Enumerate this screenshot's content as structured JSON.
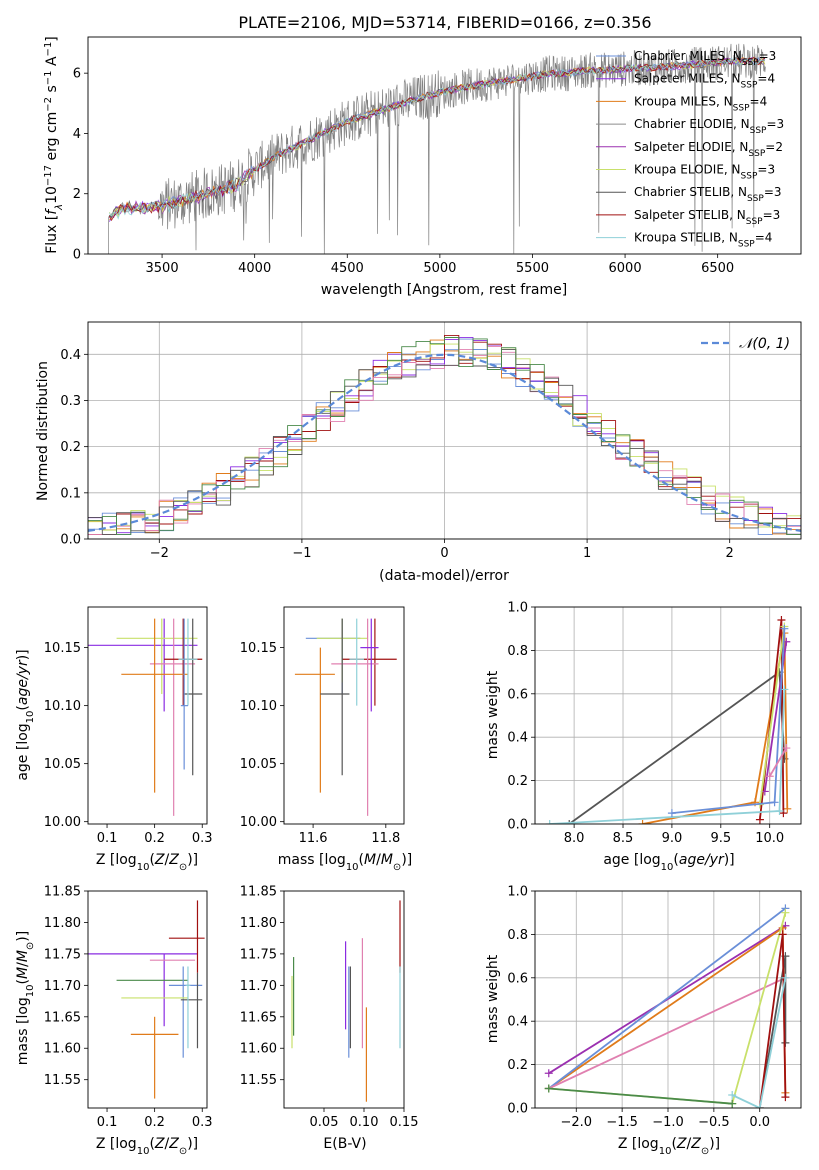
{
  "colors": {
    "Chabrier MILES": "#6a8fd8",
    "Salpeter MILES": "#8a2be2",
    "Kroupa MILES": "#e07b1a",
    "Chabrier ELODIE": "#8c8c8c",
    "Salpeter ELODIE": "#9b30b0",
    "Kroupa ELODIE": "#c8e06a",
    "Chabrier STELIB": "#555555",
    "Salpeter STELIB": "#a01010",
    "Kroupa STELIB": "#8fd0d8",
    "pink": "#e080b0",
    "green": "#4a8a4a",
    "normal": "#5b8ad8"
  },
  "chart_data": [
    {
      "id": "spectrum",
      "type": "line",
      "title": "PLATE=2106, MJD=53714, FIBERID=0166, z=0.356",
      "xlabel": "wavelength [Angstrom, rest frame]",
      "ylabel": "Flux [f_λ10^-17 erg cm^-2 s^-1 A^-1]",
      "xlim": [
        3100,
        6950
      ],
      "ylim": [
        0,
        7.2
      ],
      "xticks": [
        "3500",
        "4000",
        "4500",
        "5000",
        "5500",
        "6000",
        "6500"
      ],
      "yticks": [
        "0",
        "2",
        "4",
        "6"
      ],
      "continuum": {
        "x": [
          3210,
          3250,
          3300,
          3400,
          3500,
          3600,
          3700,
          3800,
          3900,
          4000,
          4100,
          4200,
          4300,
          4400,
          4500,
          4600,
          4700,
          4800,
          4900,
          5000,
          5100,
          5200,
          5300,
          5400,
          5500,
          5600,
          5700,
          5800,
          5900,
          6000,
          6200,
          6400,
          6600,
          6750
        ],
        "y": [
          1.2,
          1.4,
          1.5,
          1.55,
          1.6,
          1.75,
          1.95,
          2.1,
          2.3,
          2.8,
          3.2,
          3.5,
          3.8,
          4.1,
          4.4,
          4.6,
          4.8,
          5.0,
          5.2,
          5.35,
          5.5,
          5.6,
          5.7,
          5.8,
          5.9,
          6.0,
          6.0,
          6.1,
          6.1,
          6.15,
          6.2,
          6.3,
          6.4,
          6.4
        ]
      },
      "legend": [
        {
          "label": "Chabrier MILES, N_SSP=3",
          "text": "Chabrier MILES, N",
          "sub": "SSP",
          "tail": "=3"
        },
        {
          "label": "Salpeter MILES, N_SSP=4",
          "text": "Salpeter MILES, N",
          "sub": "SSP",
          "tail": "=4"
        },
        {
          "label": "Kroupa MILES, N_SSP=4",
          "text": "Kroupa MILES, N",
          "sub": "SSP",
          "tail": "=4"
        },
        {
          "label": "Chabrier ELODIE, N_SSP=3",
          "text": "Chabrier ELODIE, N",
          "sub": "SSP",
          "tail": "=3"
        },
        {
          "label": "Salpeter ELODIE, N_SSP=2",
          "text": "Salpeter ELODIE, N",
          "sub": "SSP",
          "tail": "=2"
        },
        {
          "label": "Kroupa ELODIE, N_SSP=3",
          "text": "Kroupa ELODIE, N",
          "sub": "SSP",
          "tail": "=3"
        },
        {
          "label": "Chabrier STELIB, N_SSP=3",
          "text": "Chabrier STELIB, N",
          "sub": "SSP",
          "tail": "=3"
        },
        {
          "label": "Salpeter STELIB, N_SSP=3",
          "text": "Salpeter STELIB, N",
          "sub": "SSP",
          "tail": "=3"
        },
        {
          "label": "Kroupa STELIB, N_SSP=4",
          "text": "Kroupa STELIB, N",
          "sub": "SSP",
          "tail": "=4"
        }
      ],
      "legend_loc": "upper right"
    },
    {
      "id": "residuals",
      "type": "line",
      "xlabel": "(data-model)/error",
      "ylabel": "Normed distribution",
      "xlim": [
        -2.5,
        2.5
      ],
      "ylim": [
        0,
        0.47
      ],
      "xticks": [
        "−2",
        "−1",
        "0",
        "1",
        "2"
      ],
      "yticks": [
        "0.0",
        "0.1",
        "0.2",
        "0.3",
        "0.4"
      ],
      "grid": true,
      "legend": "𝒩(0, 1)",
      "legend_loc": "upper right"
    },
    {
      "id": "age_vs_Z",
      "type": "scatter",
      "xlabel": "Z [log10(Z/Z⊙)]",
      "ylabel": "age [log10(age/yr)]",
      "xlim": [
        0.06,
        0.31
      ],
      "ylim": [
        9.998,
        10.185
      ],
      "xticks": [
        "0.1",
        "0.2",
        "0.3"
      ],
      "yticks": [
        "10.00",
        "10.05",
        "10.10",
        "10.15"
      ],
      "points": [
        {
          "series": "Salpeter MILES",
          "x": 0.22,
          "y": 10.152,
          "xlo": 0.06,
          "xhi": 0.29,
          "ylo": 10.095,
          "yhi": 10.175
        },
        {
          "series": "Kroupa ELODIE",
          "x": 0.215,
          "y": 10.158,
          "xlo": 0.12,
          "xhi": 0.29,
          "ylo": 10.11,
          "yhi": 10.175
        },
        {
          "series": "pink",
          "x": 0.24,
          "y": 10.136,
          "xlo": 0.19,
          "xhi": 0.285,
          "ylo": 10.005,
          "yhi": 10.175
        },
        {
          "series": "Salpeter STELIB",
          "x": 0.26,
          "y": 10.14,
          "xlo": 0.22,
          "xhi": 0.3,
          "ylo": 10.1,
          "yhi": 10.175
        },
        {
          "series": "Kroupa MILES",
          "x": 0.2,
          "y": 10.127,
          "xlo": 0.13,
          "xhi": 0.27,
          "ylo": 10.025,
          "yhi": 10.175
        },
        {
          "series": "Chabrier STELIB",
          "x": 0.28,
          "y": 10.11,
          "xlo": 0.26,
          "xhi": 0.3,
          "ylo": 10.04,
          "yhi": 10.175
        },
        {
          "series": "Kroupa STELIB",
          "x": 0.27,
          "y": 10.14,
          "xlo": 0.25,
          "xhi": 0.29,
          "ylo": 10.1,
          "yhi": 10.175
        },
        {
          "series": "Chabrier MILES",
          "x": 0.262,
          "y": 10.1,
          "xlo": 0.255,
          "xhi": 0.27,
          "ylo": 10.045,
          "yhi": 10.175
        }
      ]
    },
    {
      "id": "age_vs_mass",
      "type": "scatter",
      "xlabel": "mass [log10(M/M⊙)]",
      "ylabel": "",
      "xlim": [
        11.52,
        11.85
      ],
      "ylim": [
        9.998,
        10.185
      ],
      "xticks": [
        "11.6",
        "11.8"
      ],
      "yticks": [
        "10.00",
        "10.05",
        "10.10",
        "10.15"
      ],
      "points": [
        {
          "series": "Chabrier MILES",
          "x": 11.68,
          "y": 10.158,
          "xlo": 11.58,
          "xhi": 11.73,
          "ylo": 10.11,
          "yhi": 10.175
        },
        {
          "series": "Kroupa ELODIE",
          "x": 11.68,
          "y": 10.158,
          "xlo": 11.61,
          "xhi": 11.75,
          "ylo": 10.12,
          "yhi": 10.175
        },
        {
          "series": "Kroupa MILES",
          "x": 11.62,
          "y": 10.127,
          "xlo": 11.55,
          "xhi": 11.66,
          "ylo": 10.025,
          "yhi": 10.15
        },
        {
          "series": "Salpeter STELIB",
          "x": 11.77,
          "y": 10.14,
          "xlo": 11.68,
          "xhi": 11.83,
          "ylo": 10.1,
          "yhi": 10.175
        },
        {
          "series": "pink",
          "x": 11.75,
          "y": 10.136,
          "xlo": 11.65,
          "xhi": 11.78,
          "ylo": 10.005,
          "yhi": 10.175
        },
        {
          "series": "Chabrier STELIB",
          "x": 11.68,
          "y": 10.11,
          "xlo": 11.62,
          "xhi": 11.7,
          "ylo": 10.04,
          "yhi": 10.175
        },
        {
          "series": "Salpeter MILES",
          "x": 11.76,
          "y": 10.15,
          "xlo": 11.73,
          "xhi": 11.78,
          "ylo": 10.095,
          "yhi": 10.175
        },
        {
          "series": "Kroupa STELIB",
          "x": 11.72,
          "y": 10.14,
          "xlo": 11.7,
          "xhi": 11.74,
          "ylo": 10.1,
          "yhi": 10.175
        }
      ]
    },
    {
      "id": "mass_weight_vs_age",
      "type": "line",
      "xlabel": "age [log10(age/yr)]",
      "ylabel": "mass weight",
      "xlim": [
        7.6,
        10.32
      ],
      "ylim": [
        0,
        1.0
      ],
      "xticks": [
        "8.0",
        "8.5",
        "9.0",
        "9.5",
        "10.0"
      ],
      "yticks": [
        "0.0",
        "0.2",
        "0.4",
        "0.6",
        "0.8",
        "1.0"
      ],
      "grid": true,
      "series": [
        {
          "series": "Chabrier STELIB",
          "x": [
            7.95,
            10.1,
            10.15
          ],
          "y": [
            0.0,
            0.7,
            0.3
          ]
        },
        {
          "series": "Kroupa MILES",
          "x": [
            8.7,
            9.85,
            10.15,
            10.18
          ],
          "y": [
            0.0,
            0.1,
            0.88,
            0.07
          ]
        },
        {
          "series": "Salpeter STELIB",
          "x": [
            9.9,
            10.12,
            10.14
          ],
          "y": [
            0.02,
            0.94,
            0.05
          ]
        },
        {
          "series": "Salpeter ELODIE",
          "x": [
            9.95,
            10.17
          ],
          "y": [
            0.15,
            0.84
          ]
        },
        {
          "series": "Kroupa ELODIE",
          "x": [
            9.9,
            10.15
          ],
          "y": [
            0.09,
            0.91
          ]
        },
        {
          "series": "Kroupa STELIB",
          "x": [
            7.75,
            10.1,
            10.15
          ],
          "y": [
            0.0,
            0.06,
            0.62
          ]
        },
        {
          "series": "Chabrier MILES",
          "x": [
            9.0,
            10.05,
            10.15
          ],
          "y": [
            0.05,
            0.1,
            0.9
          ]
        },
        {
          "series": "pink",
          "x": [
            10.0,
            10.17
          ],
          "y": [
            0.22,
            0.35
          ]
        }
      ]
    },
    {
      "id": "mass_vs_Z",
      "type": "scatter",
      "xlabel": "Z [log10(Z/Z⊙)]",
      "ylabel": "mass [log10(M/M⊙)]",
      "xlim": [
        0.06,
        0.31
      ],
      "ylim": [
        11.505,
        11.85
      ],
      "xticks": [
        "0.1",
        "0.2",
        "0.3"
      ],
      "yticks": [
        "11.55",
        "11.60",
        "11.65",
        "11.70",
        "11.75",
        "11.80",
        "11.85"
      ],
      "points": [
        {
          "series": "Salpeter MILES",
          "x": 0.22,
          "y": 11.75,
          "xlo": 0.06,
          "xhi": 0.29,
          "ylo": 11.635,
          "yhi": 11.75
        },
        {
          "series": "pink",
          "x": 0.24,
          "y": 11.74,
          "xlo": 0.19,
          "xhi": 0.285,
          "ylo": 11.74,
          "yhi": 11.74
        },
        {
          "series": "Salpeter STELIB",
          "x": 0.29,
          "y": 11.775,
          "xlo": 0.23,
          "xhi": 0.305,
          "ylo": 11.72,
          "yhi": 11.835
        },
        {
          "series": "green",
          "x": 0.2,
          "y": 11.708,
          "xlo": 0.12,
          "xhi": 0.27,
          "ylo": 11.708,
          "yhi": 11.708
        },
        {
          "series": "Chabrier MILES",
          "x": 0.26,
          "y": 11.7,
          "xlo": 0.23,
          "xhi": 0.3,
          "ylo": 11.585,
          "yhi": 11.73
        },
        {
          "series": "Kroupa ELODIE",
          "x": 0.2,
          "y": 11.68,
          "xlo": 0.13,
          "xhi": 0.27,
          "ylo": 11.68,
          "yhi": 11.68
        },
        {
          "series": "Chabrier STELIB",
          "x": 0.29,
          "y": 11.677,
          "xlo": 0.255,
          "xhi": 0.3,
          "ylo": 11.6,
          "yhi": 11.72
        },
        {
          "series": "Kroupa MILES",
          "x": 0.2,
          "y": 11.622,
          "xlo": 0.15,
          "xhi": 0.25,
          "ylo": 11.52,
          "yhi": 11.65
        },
        {
          "series": "Kroupa STELIB",
          "x": 0.27,
          "y": 11.7,
          "xlo": 0.265,
          "xhi": 0.275,
          "ylo": 11.6,
          "yhi": 11.73
        }
      ]
    },
    {
      "id": "mass_vs_EBV",
      "type": "scatter",
      "xlabel": "E(B-V)",
      "ylabel": "",
      "xlim": [
        0.0,
        0.15
      ],
      "ylim": [
        11.505,
        11.85
      ],
      "xticks": [
        "0.05",
        "0.10",
        "0.15"
      ],
      "yticks": [
        "11.55",
        "11.60",
        "11.65",
        "11.70",
        "11.75",
        "11.80",
        "11.85"
      ],
      "points": [
        {
          "series": "Kroupa ELODIE",
          "x": 0.01,
          "y": 11.66,
          "ylo": 11.6,
          "yhi": 11.715
        },
        {
          "series": "green",
          "x": 0.012,
          "y": 11.68,
          "ylo": 11.62,
          "yhi": 11.745
        },
        {
          "series": "Salpeter MILES",
          "x": 0.077,
          "y": 11.7,
          "ylo": 11.63,
          "yhi": 11.77
        },
        {
          "series": "Chabrier MILES",
          "x": 0.081,
          "y": 11.65,
          "ylo": 11.585,
          "yhi": 11.73
        },
        {
          "series": "Chabrier STELIB",
          "x": 0.083,
          "y": 11.67,
          "ylo": 11.6,
          "yhi": 11.73
        },
        {
          "series": "pink",
          "x": 0.098,
          "y": 11.7,
          "ylo": 11.6,
          "yhi": 11.775
        },
        {
          "series": "Kroupa MILES",
          "x": 0.103,
          "y": 11.62,
          "ylo": 11.515,
          "yhi": 11.665
        },
        {
          "series": "Salpeter STELIB",
          "x": 0.145,
          "y": 11.79,
          "ylo": 11.72,
          "yhi": 11.835
        },
        {
          "series": "Kroupa STELIB",
          "x": 0.145,
          "y": 11.67,
          "ylo": 11.6,
          "yhi": 11.73
        }
      ]
    },
    {
      "id": "mass_weight_vs_Z",
      "type": "line",
      "xlabel": "Z [log10(Z/Z⊙)]",
      "ylabel": "mass weight",
      "xlim": [
        -2.45,
        0.45
      ],
      "ylim": [
        0,
        1.0
      ],
      "xticks": [
        "−2.0",
        "−1.5",
        "−1.0",
        "−0.5",
        "0.0"
      ],
      "yticks": [
        "0.0",
        "0.2",
        "0.4",
        "0.6",
        "0.8",
        "1.0"
      ],
      "grid": true,
      "series": [
        {
          "series": "Salpeter ELODIE",
          "x": [
            -2.3,
            0.28
          ],
          "y": [
            0.16,
            0.84
          ]
        },
        {
          "series": "Kroupa MILES",
          "x": [
            -2.3,
            0.25,
            0.28
          ],
          "y": [
            0.09,
            0.83,
            0.07
          ]
        },
        {
          "series": "Chabrier MILES",
          "x": [
            -2.3,
            0.28
          ],
          "y": [
            0.09,
            0.92
          ]
        },
        {
          "series": "pink",
          "x": [
            -2.3,
            0.28
          ],
          "y": [
            0.09,
            0.6
          ]
        },
        {
          "series": "Kroupa ELODIE",
          "x": [
            -2.3,
            -0.3,
            0.28
          ],
          "y": [
            0.09,
            0.02,
            0.9
          ]
        },
        {
          "series": "green",
          "x": [
            -2.3,
            -0.3
          ],
          "y": [
            0.09,
            0.02
          ]
        },
        {
          "series": "Chabrier STELIB",
          "x": [
            0.0,
            0.28,
            0.28
          ],
          "y": [
            0.0,
            0.7,
            0.3
          ]
        },
        {
          "series": "Salpeter STELIB",
          "x": [
            0.0,
            0.25,
            0.28
          ],
          "y": [
            0.0,
            0.8,
            0.05
          ]
        },
        {
          "series": "Kroupa STELIB",
          "x": [
            -0.3,
            0.0,
            0.28
          ],
          "y": [
            0.06,
            0.0,
            0.6
          ]
        }
      ]
    }
  ]
}
